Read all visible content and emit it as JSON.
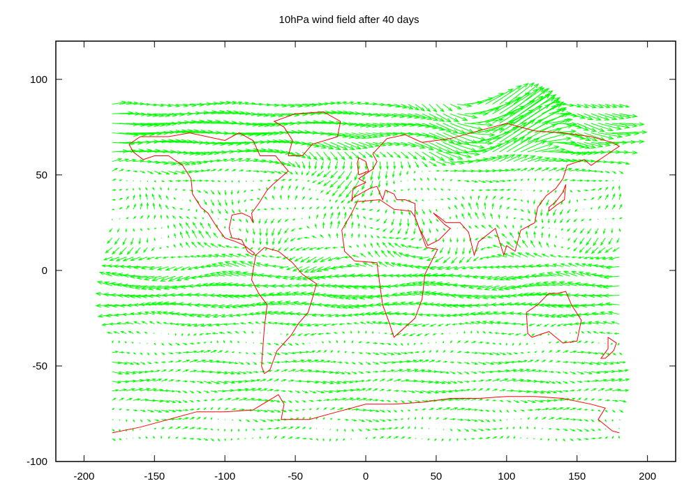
{
  "chart_data": {
    "type": "vector_field",
    "title": "10hPa wind field after 40 days",
    "xlim": [
      -220,
      220
    ],
    "ylim": [
      -100,
      120
    ],
    "xticks": [
      -200,
      -150,
      -100,
      -50,
      0,
      50,
      100,
      150,
      200
    ],
    "yticks": [
      -100,
      -50,
      0,
      50,
      100
    ],
    "xtick_labels": [
      "-200",
      "-150",
      "-100",
      "-50",
      "0",
      "50",
      "100",
      "150",
      "200"
    ],
    "ytick_labels": [
      "-100",
      "-50",
      "0",
      "50",
      "100"
    ],
    "grid": false,
    "series": [
      {
        "kind": "arrows",
        "color": "#00ff00",
        "grid_lon": [
          -180,
          180,
          5
        ],
        "grid_lat": [
          -88,
          88,
          5
        ]
      },
      {
        "kind": "coastline",
        "color": "#ff0000"
      }
    ]
  }
}
